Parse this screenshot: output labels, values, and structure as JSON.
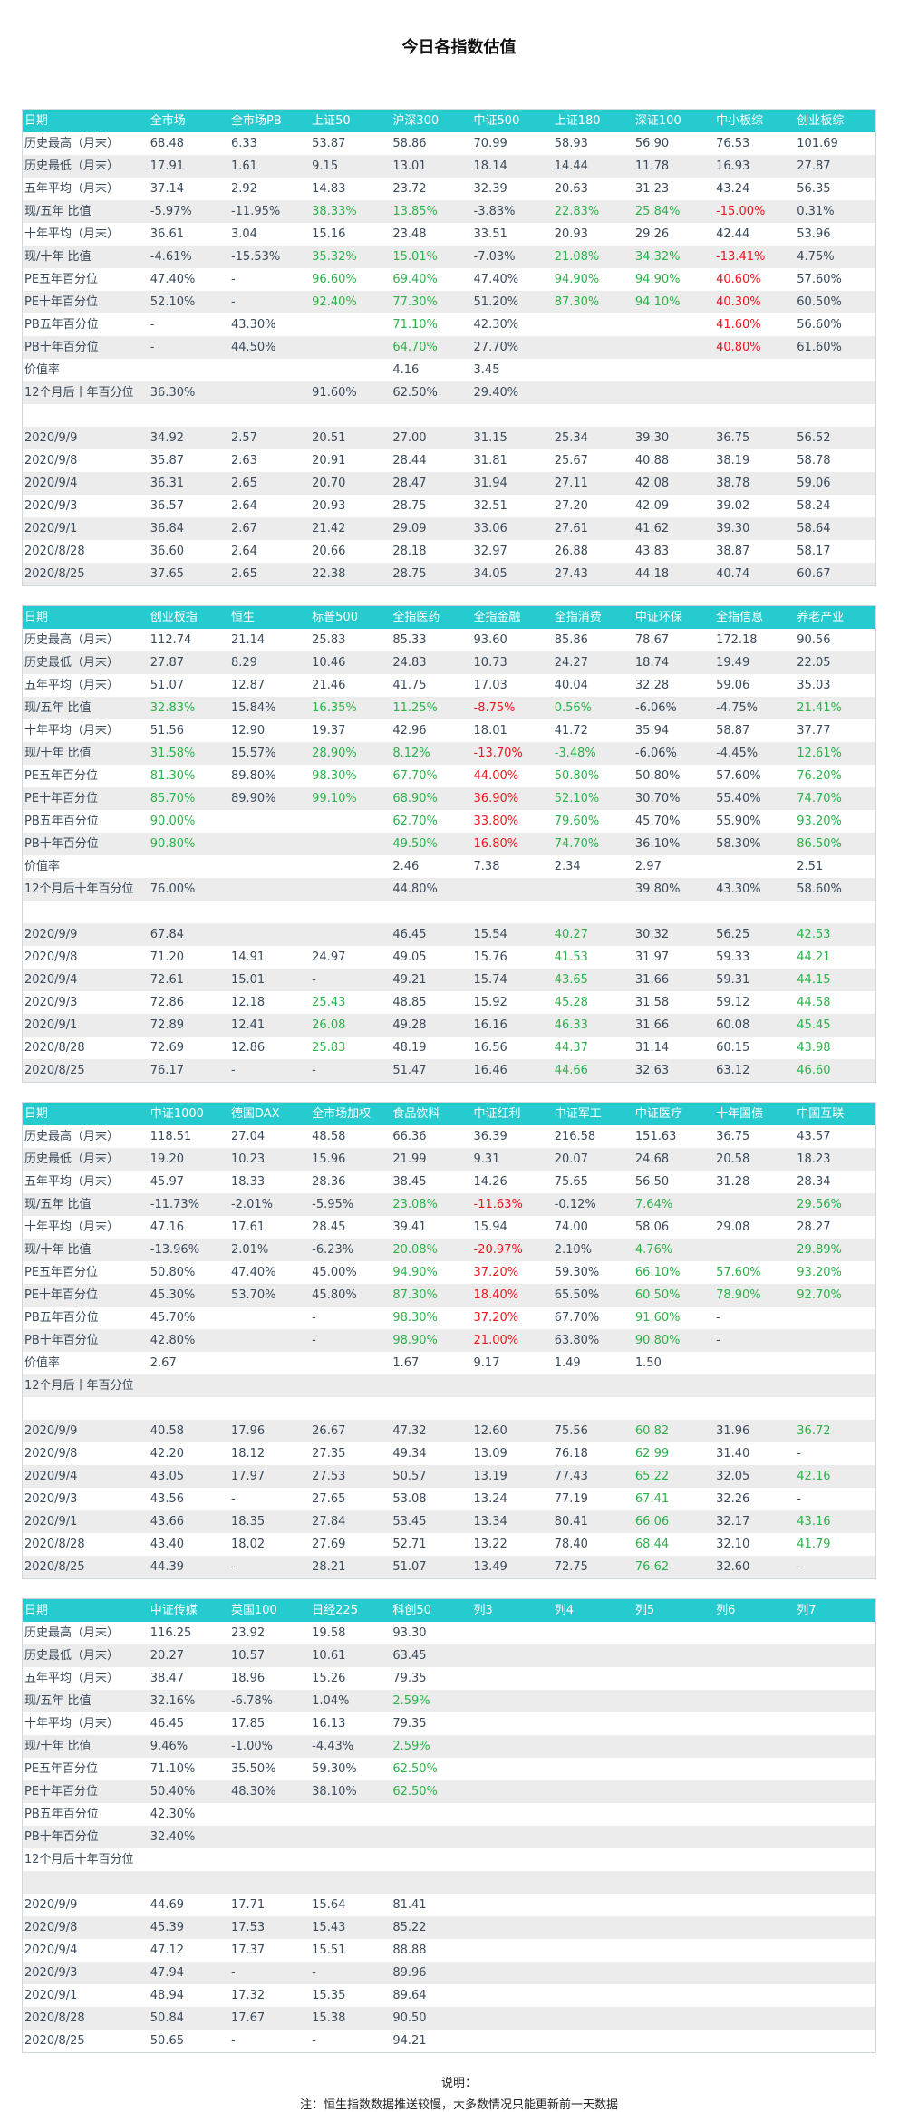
{
  "page": {
    "title": "今日各指数估值"
  },
  "colors": {
    "header": "#26cbd0",
    "up": "#2db24a",
    "down": "#f0141e",
    "stripe": "#ececec"
  },
  "tables": [
    {
      "headers": [
        "日期",
        "全市场",
        "全市场PB",
        "上证50",
        "沪深300",
        "中证500",
        "上证180",
        "深证100",
        "中小板综",
        "创业板综"
      ],
      "rows": [
        [
          "历史最高（月末）",
          "68.48",
          "6.33",
          "53.87",
          "58.86",
          "70.99",
          "58.93",
          "56.90",
          "76.53",
          "101.69"
        ],
        [
          "历史最低（月末）",
          "17.91",
          "1.61",
          "9.15",
          "13.01",
          "18.14",
          "14.44",
          "11.78",
          "16.93",
          "27.87"
        ],
        [
          "五年平均（月末）",
          "37.14",
          "2.92",
          "14.83",
          "23.72",
          "32.39",
          "20.63",
          "31.23",
          "43.24",
          "56.35"
        ],
        [
          "现/五年 比值",
          "-5.97%",
          "-11.95%",
          "+38.33%",
          "+13.85%",
          "-3.83%",
          "+22.83%",
          "+25.84%",
          "!-15.00%",
          "0.31%"
        ],
        [
          "十年平均（月末）",
          "36.61",
          "3.04",
          "15.16",
          "23.48",
          "33.51",
          "20.93",
          "29.26",
          "42.44",
          "53.96"
        ],
        [
          "现/十年 比值",
          "-4.61%",
          "-15.53%",
          "+35.32%",
          "+15.01%",
          "-7.03%",
          "+21.08%",
          "+34.32%",
          "!-13.41%",
          "4.75%"
        ],
        [
          "PE五年百分位",
          "47.40%",
          "-",
          "+96.60%",
          "+69.40%",
          "47.40%",
          "+94.90%",
          "+94.90%",
          "!40.60%",
          "57.60%"
        ],
        [
          "PE十年百分位",
          "52.10%",
          "-",
          "+92.40%",
          "+77.30%",
          "51.20%",
          "+87.30%",
          "+94.10%",
          "!40.30%",
          "60.50%"
        ],
        [
          "PB五年百分位",
          "-",
          "43.30%",
          "",
          "+71.10%",
          "42.30%",
          "",
          "",
          "!41.60%",
          "56.60%"
        ],
        [
          "PB十年百分位",
          "-",
          "44.50%",
          "",
          "+64.70%",
          "27.70%",
          "",
          "",
          "!40.80%",
          "61.60%"
        ],
        [
          "价值率",
          "",
          "",
          "",
          "4.16",
          "3.45",
          "",
          "",
          "",
          ""
        ],
        [
          "12个月后十年百分位",
          "36.30%",
          "",
          "91.60%",
          "62.50%",
          "29.40%",
          "",
          "",
          "",
          ""
        ],
        [
          "",
          "",
          "",
          "",
          "",
          "",
          "",
          "",
          "",
          ""
        ],
        [
          "2020/9/9",
          "34.92",
          "2.57",
          "20.51",
          "27.00",
          "31.15",
          "25.34",
          "39.30",
          "36.75",
          "56.52"
        ],
        [
          "2020/9/8",
          "35.87",
          "2.63",
          "20.91",
          "28.44",
          "31.81",
          "25.67",
          "40.88",
          "38.19",
          "58.78"
        ],
        [
          "2020/9/4",
          "36.31",
          "2.65",
          "20.70",
          "28.47",
          "31.94",
          "27.11",
          "42.08",
          "38.78",
          "59.06"
        ],
        [
          "2020/9/3",
          "36.57",
          "2.64",
          "20.93",
          "28.75",
          "32.51",
          "27.20",
          "42.09",
          "39.02",
          "58.24"
        ],
        [
          "2020/9/1",
          "36.84",
          "2.67",
          "21.42",
          "29.09",
          "33.06",
          "27.61",
          "41.62",
          "39.30",
          "58.64"
        ],
        [
          "2020/8/28",
          "36.60",
          "2.64",
          "20.66",
          "28.18",
          "32.97",
          "26.88",
          "43.83",
          "38.87",
          "58.17"
        ],
        [
          "2020/8/25",
          "37.65",
          "2.65",
          "22.38",
          "28.75",
          "34.05",
          "27.43",
          "44.18",
          "40.74",
          "60.67"
        ]
      ]
    },
    {
      "headers": [
        "日期",
        "创业板指",
        "恒生",
        "标普500",
        "全指医药",
        "全指金融",
        "全指消费",
        "中证环保",
        "全指信息",
        "养老产业"
      ],
      "rows": [
        [
          "历史最高（月末）",
          "112.74",
          "21.14",
          "25.83",
          "85.33",
          "93.60",
          "85.86",
          "78.67",
          "172.18",
          "90.56"
        ],
        [
          "历史最低（月末）",
          "27.87",
          "8.29",
          "10.46",
          "24.83",
          "10.73",
          "24.27",
          "18.74",
          "19.49",
          "22.05"
        ],
        [
          "五年平均（月末）",
          "51.07",
          "12.87",
          "21.46",
          "41.75",
          "17.03",
          "40.04",
          "32.28",
          "59.06",
          "35.03"
        ],
        [
          "现/五年 比值",
          "+32.83%",
          "15.84%",
          "+16.35%",
          "+11.25%",
          "!-8.75%",
          "+0.56%",
          "-6.06%",
          "-4.75%",
          "+21.41%"
        ],
        [
          "十年平均（月末）",
          "51.56",
          "12.90",
          "19.37",
          "42.96",
          "18.01",
          "41.72",
          "35.94",
          "58.87",
          "37.77"
        ],
        [
          "现/十年 比值",
          "+31.58%",
          "15.57%",
          "+28.90%",
          "+8.12%",
          "!-13.70%",
          "+-3.48%",
          "-6.06%",
          "-4.45%",
          "+12.61%"
        ],
        [
          "PE五年百分位",
          "+81.30%",
          "89.80%",
          "+98.30%",
          "+67.70%",
          "!44.00%",
          "+50.80%",
          "50.80%",
          "57.60%",
          "+76.20%"
        ],
        [
          "PE十年百分位",
          "+85.70%",
          "89.90%",
          "+99.10%",
          "+68.90%",
          "!36.90%",
          "+52.10%",
          "30.70%",
          "55.40%",
          "+74.70%"
        ],
        [
          "PB五年百分位",
          "+90.00%",
          "",
          "",
          "+62.70%",
          "!33.80%",
          "+79.60%",
          "45.70%",
          "55.90%",
          "+93.20%"
        ],
        [
          "PB十年百分位",
          "+90.80%",
          "",
          "",
          "+49.50%",
          "!16.80%",
          "+74.70%",
          "36.10%",
          "58.30%",
          "+86.50%"
        ],
        [
          "价值率",
          "",
          "",
          "",
          "2.46",
          "7.38",
          "2.34",
          "2.97",
          "",
          "2.51"
        ],
        [
          "12个月后十年百分位",
          "76.00%",
          "",
          "",
          "44.80%",
          "",
          "",
          "39.80%",
          "43.30%",
          "58.60%"
        ],
        [
          "",
          "",
          "",
          "",
          "",
          "",
          "",
          "",
          "",
          ""
        ],
        [
          "2020/9/9",
          "67.84",
          "",
          "",
          "46.45",
          "15.54",
          "+40.27",
          "30.32",
          "56.25",
          "+42.53"
        ],
        [
          "2020/9/8",
          "71.20",
          "14.91",
          "24.97",
          "49.05",
          "15.76",
          "+41.53",
          "31.97",
          "59.33",
          "+44.21"
        ],
        [
          "2020/9/4",
          "72.61",
          "15.01",
          "-",
          "49.21",
          "15.74",
          "+43.65",
          "31.66",
          "59.31",
          "+44.15"
        ],
        [
          "2020/9/3",
          "72.86",
          "12.18",
          "+25.43",
          "48.85",
          "15.92",
          "+45.28",
          "31.58",
          "59.12",
          "+44.58"
        ],
        [
          "2020/9/1",
          "72.89",
          "12.41",
          "+26.08",
          "49.28",
          "16.16",
          "+46.33",
          "31.66",
          "60.08",
          "+45.45"
        ],
        [
          "2020/8/28",
          "72.69",
          "12.86",
          "+25.83",
          "48.19",
          "16.56",
          "+44.37",
          "31.14",
          "60.15",
          "+43.98"
        ],
        [
          "2020/8/25",
          "76.17",
          "-",
          "-",
          "51.47",
          "16.46",
          "+44.66",
          "32.63",
          "63.12",
          "+46.60"
        ]
      ]
    },
    {
      "headers": [
        "日期",
        "中证1000",
        "德国DAX",
        "全市场加权",
        "食品饮料",
        "中证红利",
        "中证军工",
        "中证医疗",
        "十年国债",
        "中国互联"
      ],
      "rows": [
        [
          "历史最高（月末）",
          "118.51",
          "27.04",
          "48.58",
          "66.36",
          "36.39",
          "216.58",
          "151.63",
          "36.75",
          "43.57"
        ],
        [
          "历史最低（月末）",
          "19.20",
          "10.23",
          "15.96",
          "21.99",
          "9.31",
          "20.07",
          "24.68",
          "20.58",
          "18.23"
        ],
        [
          "五年平均（月末）",
          "45.97",
          "18.33",
          "28.36",
          "38.45",
          "14.26",
          "75.65",
          "56.50",
          "31.28",
          "28.34"
        ],
        [
          "现/五年 比值",
          "-11.73%",
          "-2.01%",
          "-5.95%",
          "+23.08%",
          "!-11.63%",
          "-0.12%",
          "+7.64%",
          "",
          "+29.56%"
        ],
        [
          "十年平均（月末）",
          "47.16",
          "17.61",
          "28.45",
          "39.41",
          "15.94",
          "74.00",
          "58.06",
          "29.08",
          "28.27"
        ],
        [
          "现/十年 比值",
          "-13.96%",
          "2.01%",
          "-6.23%",
          "+20.08%",
          "!-20.97%",
          "2.10%",
          "+4.76%",
          "",
          "+29.89%"
        ],
        [
          "PE五年百分位",
          "50.80%",
          "47.40%",
          "45.00%",
          "+94.90%",
          "!37.20%",
          "59.30%",
          "+66.10%",
          "+57.60%",
          "+93.20%"
        ],
        [
          "PE十年百分位",
          "45.30%",
          "53.70%",
          "45.80%",
          "+87.30%",
          "!18.40%",
          "65.50%",
          "+60.50%",
          "+78.90%",
          "+92.70%"
        ],
        [
          "PB五年百分位",
          "45.70%",
          "",
          "-",
          "+98.30%",
          "!37.20%",
          "67.70%",
          "+91.60%",
          "-",
          ""
        ],
        [
          "PB十年百分位",
          "42.80%",
          "",
          "-",
          "+98.90%",
          "!21.00%",
          "63.80%",
          "+90.80%",
          "-",
          ""
        ],
        [
          "价值率",
          "2.67",
          "",
          "",
          "1.67",
          "9.17",
          "1.49",
          "1.50",
          "",
          ""
        ],
        [
          "12个月后十年百分位",
          "",
          "",
          "",
          "",
          "",
          "",
          "",
          "",
          ""
        ],
        [
          "",
          "",
          "",
          "",
          "",
          "",
          "",
          "",
          "",
          ""
        ],
        [
          "2020/9/9",
          "40.58",
          "17.96",
          "26.67",
          "47.32",
          "12.60",
          "75.56",
          "+60.82",
          "31.96",
          "+36.72"
        ],
        [
          "2020/9/8",
          "42.20",
          "18.12",
          "27.35",
          "49.34",
          "13.09",
          "76.18",
          "+62.99",
          "31.40",
          "-"
        ],
        [
          "2020/9/4",
          "43.05",
          "17.97",
          "27.53",
          "50.57",
          "13.19",
          "77.43",
          "+65.22",
          "32.05",
          "+42.16"
        ],
        [
          "2020/9/3",
          "43.56",
          "-",
          "27.65",
          "53.08",
          "13.24",
          "77.19",
          "+67.41",
          "32.26",
          "-"
        ],
        [
          "2020/9/1",
          "43.66",
          "18.35",
          "27.84",
          "53.45",
          "13.34",
          "80.41",
          "+66.06",
          "32.17",
          "+43.16"
        ],
        [
          "2020/8/28",
          "43.40",
          "18.02",
          "27.69",
          "52.71",
          "13.22",
          "78.40",
          "+68.44",
          "32.10",
          "+41.79"
        ],
        [
          "2020/8/25",
          "44.39",
          "-",
          "28.21",
          "51.07",
          "13.49",
          "72.75",
          "+76.62",
          "32.60",
          "-"
        ]
      ]
    },
    {
      "headers": [
        "日期",
        "中证传媒",
        "英国100",
        "日经225",
        "科创50",
        "列3",
        "列4",
        "列5",
        "列6",
        "列7"
      ],
      "rows": [
        [
          "历史最高（月末）",
          "116.25",
          "23.92",
          "19.58",
          "93.30",
          "",
          "",
          "",
          "",
          ""
        ],
        [
          "历史最低（月末）",
          "20.27",
          "10.57",
          "10.61",
          "63.45",
          "",
          "",
          "",
          "",
          ""
        ],
        [
          "五年平均（月末）",
          "38.47",
          "18.96",
          "15.26",
          "79.35",
          "",
          "",
          "",
          "",
          ""
        ],
        [
          "现/五年 比值",
          "32.16%",
          "-6.78%",
          "1.04%",
          "+2.59%",
          "",
          "",
          "",
          "",
          ""
        ],
        [
          "十年平均（月末）",
          "46.45",
          "17.85",
          "16.13",
          "79.35",
          "",
          "",
          "",
          "",
          ""
        ],
        [
          "现/十年 比值",
          "9.46%",
          "-1.00%",
          "-4.43%",
          "+2.59%",
          "",
          "",
          "",
          "",
          ""
        ],
        [
          "PE五年百分位",
          "71.10%",
          "35.50%",
          "59.30%",
          "+62.50%",
          "",
          "",
          "",
          "",
          ""
        ],
        [
          "PE十年百分位",
          "50.40%",
          "48.30%",
          "38.10%",
          "+62.50%",
          "",
          "",
          "",
          "",
          ""
        ],
        [
          "PB五年百分位",
          "42.30%",
          "",
          "",
          "",
          "",
          "",
          "",
          "",
          ""
        ],
        [
          "PB十年百分位",
          "32.40%",
          "",
          "",
          "",
          "",
          "",
          "",
          "",
          ""
        ],
        [
          "12个月后十年百分位",
          "",
          "",
          "",
          "",
          "",
          "",
          "",
          "",
          ""
        ],
        [
          "",
          "",
          "",
          "",
          "",
          "",
          "",
          "",
          "",
          ""
        ],
        [
          "2020/9/9",
          "44.69",
          "17.71",
          "15.64",
          "81.41",
          "",
          "",
          "",
          "",
          ""
        ],
        [
          "2020/9/8",
          "45.39",
          "17.53",
          "15.43",
          "85.22",
          "",
          "",
          "",
          "",
          ""
        ],
        [
          "2020/9/4",
          "47.12",
          "17.37",
          "15.51",
          "88.88",
          "",
          "",
          "",
          "",
          ""
        ],
        [
          "2020/9/3",
          "47.94",
          "-",
          "-",
          "89.96",
          "",
          "",
          "",
          "",
          ""
        ],
        [
          "2020/9/1",
          "48.94",
          "17.32",
          "15.35",
          "89.64",
          "",
          "",
          "",
          "",
          ""
        ],
        [
          "2020/8/28",
          "50.84",
          "17.67",
          "15.38",
          "90.50",
          "",
          "",
          "",
          "",
          ""
        ],
        [
          "2020/8/25",
          "50.65",
          "-",
          "-",
          "94.21",
          "",
          "",
          "",
          "",
          ""
        ]
      ]
    }
  ],
  "notes": {
    "title": "说明：",
    "line1": "注：恒生指数数据推送较慢，大多数情况只能更新前一天数据"
  }
}
